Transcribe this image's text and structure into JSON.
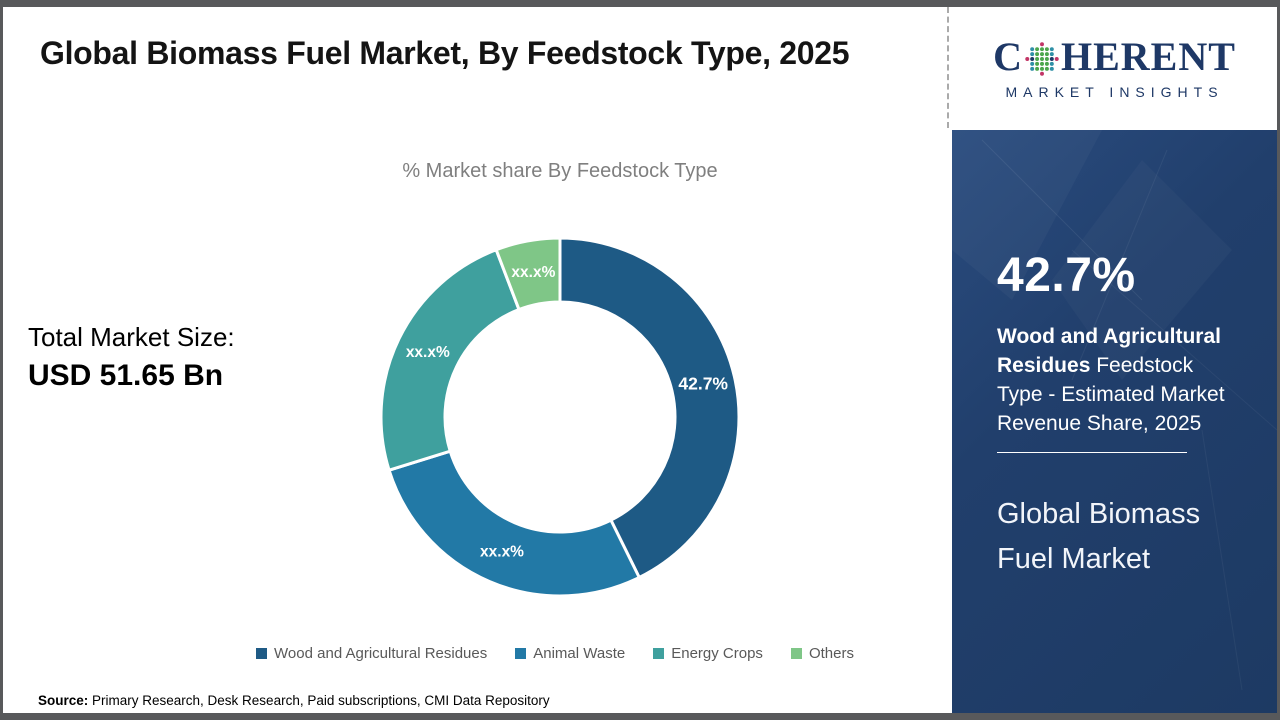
{
  "header": {
    "title": "Global Biomass Fuel Market, By Feedstock Type, 2025"
  },
  "logo": {
    "brand_first_letter": "C",
    "brand_rest": "HERENT",
    "tagline": "MARKET INSIGHTS",
    "brand_color": "#1e3866",
    "globe_colors": {
      "green": "#4ca64c",
      "teal": "#2e8fa6",
      "crimson": "#c23566",
      "navy": "#1e3866"
    }
  },
  "total_market": {
    "label": "Total Market Size:",
    "value": "USD 51.65 Bn"
  },
  "chart_data": {
    "type": "pie",
    "subtype": "donut",
    "title": "% Market share By Feedstock Type",
    "donut_hole_ratio": 0.64,
    "legend_position": "bottom",
    "start_angle_deg": 0,
    "direction": "clockwise",
    "segments": [
      {
        "label": "Wood and Agricultural Residues",
        "display_value": "42.7%",
        "value_pct": 42.7,
        "estimated": false,
        "color": "#1e5a85",
        "emphasis": true
      },
      {
        "label": "Animal Waste",
        "display_value": "xx.x%",
        "value_pct": 27.5,
        "estimated": true,
        "color": "#2279a6",
        "emphasis": false
      },
      {
        "label": "Energy Crops",
        "display_value": "xx.x%",
        "value_pct": 24.0,
        "estimated": true,
        "color": "#3fa09e",
        "emphasis": false
      },
      {
        "label": "Others",
        "display_value": "xx.x%",
        "value_pct": 5.8,
        "estimated": true,
        "color": "#7fc687",
        "emphasis": false
      }
    ]
  },
  "sidebar": {
    "stat_value": "42.7%",
    "stat_bold": "Wood and Agricultural Residues",
    "stat_rest": " Feedstock Type - Estimated Market Revenue Share, 2025",
    "market_name": "Global Biomass Fuel Market",
    "panel_color": "#213f6c"
  },
  "source": {
    "label": "Source:",
    "text": " Primary Research, Desk Research, Paid subscriptions, CMI Data Repository"
  }
}
